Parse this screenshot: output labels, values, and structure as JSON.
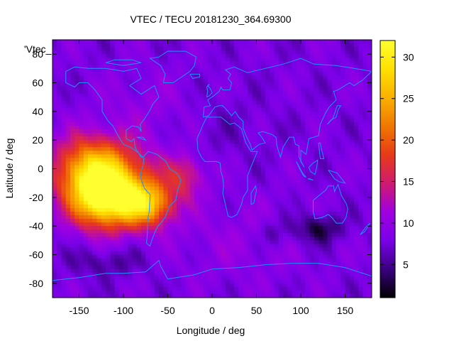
{
  "chart_data": {
    "type": "heatmap",
    "title": "VTEC / TECU 20181230_364.69300",
    "xlabel": "Longitude / deg",
    "ylabel": "Latitude / deg",
    "legend_entry": "'Vtec_",
    "xlim": [
      -180,
      180
    ],
    "ylim": [
      -90,
      90
    ],
    "x_ticks": [
      -150,
      -100,
      -50,
      0,
      50,
      100,
      150
    ],
    "y_ticks": [
      80,
      60,
      40,
      20,
      0,
      -20,
      -40,
      -60,
      -80
    ],
    "colorbar": {
      "range": [
        1,
        32
      ],
      "ticks": [
        5,
        10,
        15,
        20,
        25,
        30
      ]
    },
    "grid": false,
    "colormap": [
      "#000000",
      "#3a0080",
      "#7a00e8",
      "#a000e0",
      "#d01a70",
      "#e83a18",
      "#f07800",
      "#fab000",
      "#ffe000",
      "#ffff30"
    ],
    "hotspots": [
      {
        "lon": -120,
        "lat": -22,
        "sx": 40,
        "sy": 20,
        "amp": 21
      },
      {
        "lon": -70,
        "lat": -25,
        "sx": 28,
        "sy": 15,
        "amp": 14
      },
      {
        "lon": -140,
        "lat": 0,
        "sx": 40,
        "sy": 22,
        "amp": 15
      },
      {
        "lon": -100,
        "lat": -5,
        "sx": 45,
        "sy": 25,
        "amp": 8
      },
      {
        "lon": -30,
        "lat": -5,
        "sx": 22,
        "sy": 15,
        "amp": 7
      },
      {
        "lon": -70,
        "lat": 45,
        "sx": 55,
        "sy": 25,
        "amp": 2
      },
      {
        "lon": 30,
        "lat": -50,
        "sx": 80,
        "sy": 30,
        "amp": 2
      }
    ],
    "lowspots": [
      {
        "lon": 120,
        "lat": -42,
        "sx": 25,
        "sy": 10,
        "amp": 6
      },
      {
        "lon": 70,
        "lat": -45,
        "sx": 20,
        "sy": 10,
        "amp": 3
      },
      {
        "lon": -120,
        "lat": -65,
        "sx": 40,
        "sy": 10,
        "amp": 3
      },
      {
        "lon": 0,
        "lat": 30,
        "sx": 60,
        "sy": 25,
        "amp": 1
      }
    ],
    "base_level": 8,
    "coastlines": [
      [
        [
          -165,
          68
        ],
        [
          -155,
          71
        ],
        [
          -140,
          70
        ],
        [
          -120,
          70
        ],
        [
          -100,
          68
        ],
        [
          -85,
          70
        ],
        [
          -80,
          63
        ],
        [
          -93,
          58
        ],
        [
          -80,
          52
        ],
        [
          -65,
          58
        ],
        [
          -60,
          50
        ],
        [
          -67,
          45
        ],
        [
          -70,
          41
        ],
        [
          -76,
          35
        ],
        [
          -81,
          31
        ],
        [
          -80,
          26
        ],
        [
          -83,
          29
        ],
        [
          -90,
          30
        ],
        [
          -97,
          27
        ],
        [
          -97,
          21
        ],
        [
          -91,
          19
        ],
        [
          -88,
          21
        ],
        [
          -87,
          15
        ],
        [
          -83,
          11
        ],
        [
          -80,
          8
        ],
        [
          -78,
          8
        ],
        [
          -85,
          12
        ],
        [
          -92,
          15
        ],
        [
          -100,
          17
        ],
        [
          -106,
          23
        ],
        [
          -112,
          30
        ],
        [
          -117,
          33
        ],
        [
          -124,
          40
        ],
        [
          -124,
          48
        ],
        [
          -132,
          55
        ],
        [
          -140,
          60
        ],
        [
          -150,
          60
        ],
        [
          -155,
          57
        ],
        [
          -165,
          60
        ],
        [
          -165,
          68
        ]
      ],
      [
        [
          -78,
          8
        ],
        [
          -72,
          12
        ],
        [
          -62,
          10
        ],
        [
          -52,
          5
        ],
        [
          -48,
          0
        ],
        [
          -40,
          -3
        ],
        [
          -35,
          -8
        ],
        [
          -39,
          -15
        ],
        [
          -41,
          -22
        ],
        [
          -48,
          -26
        ],
        [
          -53,
          -34
        ],
        [
          -58,
          -38
        ],
        [
          -62,
          -41
        ],
        [
          -65,
          -45
        ],
        [
          -68,
          -50
        ],
        [
          -70,
          -54
        ],
        [
          -74,
          -52
        ],
        [
          -73,
          -45
        ],
        [
          -73,
          -37
        ],
        [
          -71,
          -30
        ],
        [
          -70,
          -18
        ],
        [
          -76,
          -14
        ],
        [
          -81,
          -6
        ],
        [
          -80,
          -2
        ],
        [
          -78,
          2
        ],
        [
          -77,
          7
        ],
        [
          -78,
          8
        ]
      ],
      [
        [
          -17,
          21
        ],
        [
          -16,
          13
        ],
        [
          -12,
          8
        ],
        [
          -8,
          5
        ],
        [
          -2,
          5
        ],
        [
          5,
          5
        ],
        [
          9,
          4
        ],
        [
          10,
          -2
        ],
        [
          12,
          -6
        ],
        [
          13,
          -12
        ],
        [
          12,
          -17
        ],
        [
          15,
          -25
        ],
        [
          18,
          -33
        ],
        [
          22,
          -34
        ],
        [
          28,
          -32
        ],
        [
          33,
          -25
        ],
        [
          35,
          -20
        ],
        [
          40,
          -15
        ],
        [
          40,
          -5
        ],
        [
          43,
          0
        ],
        [
          51,
          12
        ],
        [
          44,
          12
        ],
        [
          38,
          18
        ],
        [
          33,
          28
        ],
        [
          25,
          32
        ],
        [
          20,
          31
        ],
        [
          10,
          36
        ],
        [
          0,
          36
        ],
        [
          -6,
          36
        ],
        [
          -10,
          31
        ],
        [
          -17,
          21
        ]
      ],
      [
        [
          -10,
          36
        ],
        [
          -9,
          43
        ],
        [
          -2,
          44
        ],
        [
          -5,
          48
        ],
        [
          2,
          51
        ],
        [
          8,
          54
        ],
        [
          10,
          57
        ],
        [
          12,
          55
        ],
        [
          20,
          55
        ],
        [
          22,
          60
        ],
        [
          18,
          63
        ],
        [
          21,
          66
        ],
        [
          15,
          69
        ],
        [
          25,
          71
        ],
        [
          40,
          67
        ],
        [
          60,
          70
        ],
        [
          80,
          73
        ],
        [
          100,
          77
        ],
        [
          115,
          73
        ],
        [
          140,
          72
        ],
        [
          160,
          70
        ],
        [
          180,
          68
        ],
        [
          170,
          62
        ],
        [
          160,
          58
        ],
        [
          155,
          60
        ],
        [
          142,
          55
        ],
        [
          137,
          54
        ],
        [
          140,
          48
        ],
        [
          132,
          43
        ],
        [
          128,
          39
        ],
        [
          122,
          31
        ],
        [
          120,
          23
        ],
        [
          109,
          21
        ],
        [
          106,
          10
        ],
        [
          100,
          13
        ],
        [
          100,
          5
        ],
        [
          104,
          1
        ],
        [
          98,
          8
        ],
        [
          98,
          16
        ],
        [
          94,
          17
        ],
        [
          92,
          22
        ],
        [
          87,
          22
        ],
        [
          80,
          15
        ],
        [
          77,
          8
        ],
        [
          73,
          16
        ],
        [
          72,
          22
        ],
        [
          67,
          24
        ],
        [
          57,
          26
        ],
        [
          52,
          25
        ],
        [
          56,
          22
        ],
        [
          60,
          18
        ],
        [
          53,
          17
        ],
        [
          45,
          13
        ],
        [
          43,
          17
        ],
        [
          39,
          22
        ],
        [
          35,
          28
        ],
        [
          35,
          33
        ],
        [
          30,
          36
        ],
        [
          26,
          40
        ],
        [
          22,
          37
        ],
        [
          18,
          40
        ],
        [
          12,
          44
        ],
        [
          8,
          44
        ],
        [
          3,
          43
        ],
        [
          -4,
          37
        ],
        [
          -10,
          36
        ]
      ],
      [
        [
          114,
          -22
        ],
        [
          122,
          -18
        ],
        [
          128,
          -15
        ],
        [
          131,
          -12
        ],
        [
          137,
          -12
        ],
        [
          138,
          -16
        ],
        [
          142,
          -11
        ],
        [
          146,
          -19
        ],
        [
          151,
          -24
        ],
        [
          153,
          -28
        ],
        [
          151,
          -34
        ],
        [
          147,
          -38
        ],
        [
          140,
          -38
        ],
        [
          135,
          -34
        ],
        [
          131,
          -32
        ],
        [
          124,
          -34
        ],
        [
          116,
          -35
        ],
        [
          114,
          -30
        ],
        [
          114,
          -22
        ]
      ],
      [
        [
          -180,
          -78
        ],
        [
          -150,
          -76
        ],
        [
          -120,
          -73
        ],
        [
          -100,
          -73
        ],
        [
          -75,
          -72
        ],
        [
          -60,
          -64
        ],
        [
          -58,
          -68
        ],
        [
          -50,
          -77
        ],
        [
          -20,
          -74
        ],
        [
          0,
          -70
        ],
        [
          30,
          -69
        ],
        [
          60,
          -67
        ],
        [
          90,
          -66
        ],
        [
          120,
          -66
        ],
        [
          150,
          -69
        ],
        [
          165,
          -72
        ],
        [
          180,
          -75
        ]
      ],
      [
        [
          -55,
          60
        ],
        [
          -44,
          60
        ],
        [
          -25,
          68
        ],
        [
          -20,
          72
        ],
        [
          -18,
          78
        ],
        [
          -30,
          82
        ],
        [
          -50,
          82
        ],
        [
          -60,
          78
        ],
        [
          -70,
          77
        ],
        [
          -58,
          72
        ],
        [
          -53,
          66
        ],
        [
          -55,
          60
        ]
      ],
      [
        [
          130,
          31
        ],
        [
          134,
          34
        ],
        [
          140,
          36
        ],
        [
          142,
          41
        ],
        [
          145,
          44
        ],
        [
          141,
          44
        ],
        [
          139,
          40
        ],
        [
          136,
          35
        ],
        [
          130,
          31
        ]
      ],
      [
        [
          44,
          -25
        ],
        [
          47,
          -24
        ],
        [
          50,
          -15
        ],
        [
          49,
          -12
        ],
        [
          44,
          -17
        ],
        [
          44,
          -25
        ]
      ],
      [
        [
          -6,
          50
        ],
        [
          -3,
          51
        ],
        [
          0,
          53
        ],
        [
          -2,
          56
        ],
        [
          -5,
          58
        ],
        [
          -3,
          59
        ],
        [
          -6,
          57
        ],
        [
          -5,
          54
        ],
        [
          -6,
          50
        ]
      ],
      [
        [
          95,
          5
        ],
        [
          102,
          -3
        ],
        [
          106,
          -6
        ],
        [
          103,
          -5
        ],
        [
          98,
          1
        ],
        [
          95,
          5
        ]
      ],
      [
        [
          110,
          -7
        ],
        [
          114,
          -8
        ],
        [
          108,
          -7
        ],
        [
          110,
          -7
        ]
      ],
      [
        [
          109,
          1
        ],
        [
          114,
          4
        ],
        [
          119,
          6
        ],
        [
          118,
          1
        ],
        [
          116,
          -4
        ],
        [
          111,
          -2
        ],
        [
          109,
          1
        ]
      ],
      [
        [
          131,
          -1
        ],
        [
          141,
          -3
        ],
        [
          150,
          -10
        ],
        [
          143,
          -9
        ],
        [
          138,
          -7
        ],
        [
          131,
          -1
        ]
      ],
      [
        [
          120,
          18
        ],
        [
          122,
          18
        ],
        [
          124,
          12
        ],
        [
          126,
          7
        ],
        [
          122,
          7
        ],
        [
          120,
          18
        ]
      ],
      [
        [
          173,
          -41
        ],
        [
          178,
          -38
        ],
        [
          175,
          -41
        ],
        [
          172,
          -44
        ],
        [
          167,
          -46
        ],
        [
          173,
          -41
        ]
      ],
      [
        [
          -25,
          66
        ],
        [
          -14,
          66
        ],
        [
          -14,
          64
        ],
        [
          -22,
          63
        ],
        [
          -25,
          66
        ]
      ],
      [
        [
          -85,
          22
        ],
        [
          -75,
          20
        ],
        [
          -78,
          22
        ],
        [
          -85,
          22
        ]
      ],
      [
        [
          -80,
          74
        ],
        [
          -90,
          76
        ],
        [
          -110,
          76
        ],
        [
          -120,
          74
        ],
        [
          -100,
          72
        ],
        [
          -80,
          74
        ]
      ]
    ]
  }
}
